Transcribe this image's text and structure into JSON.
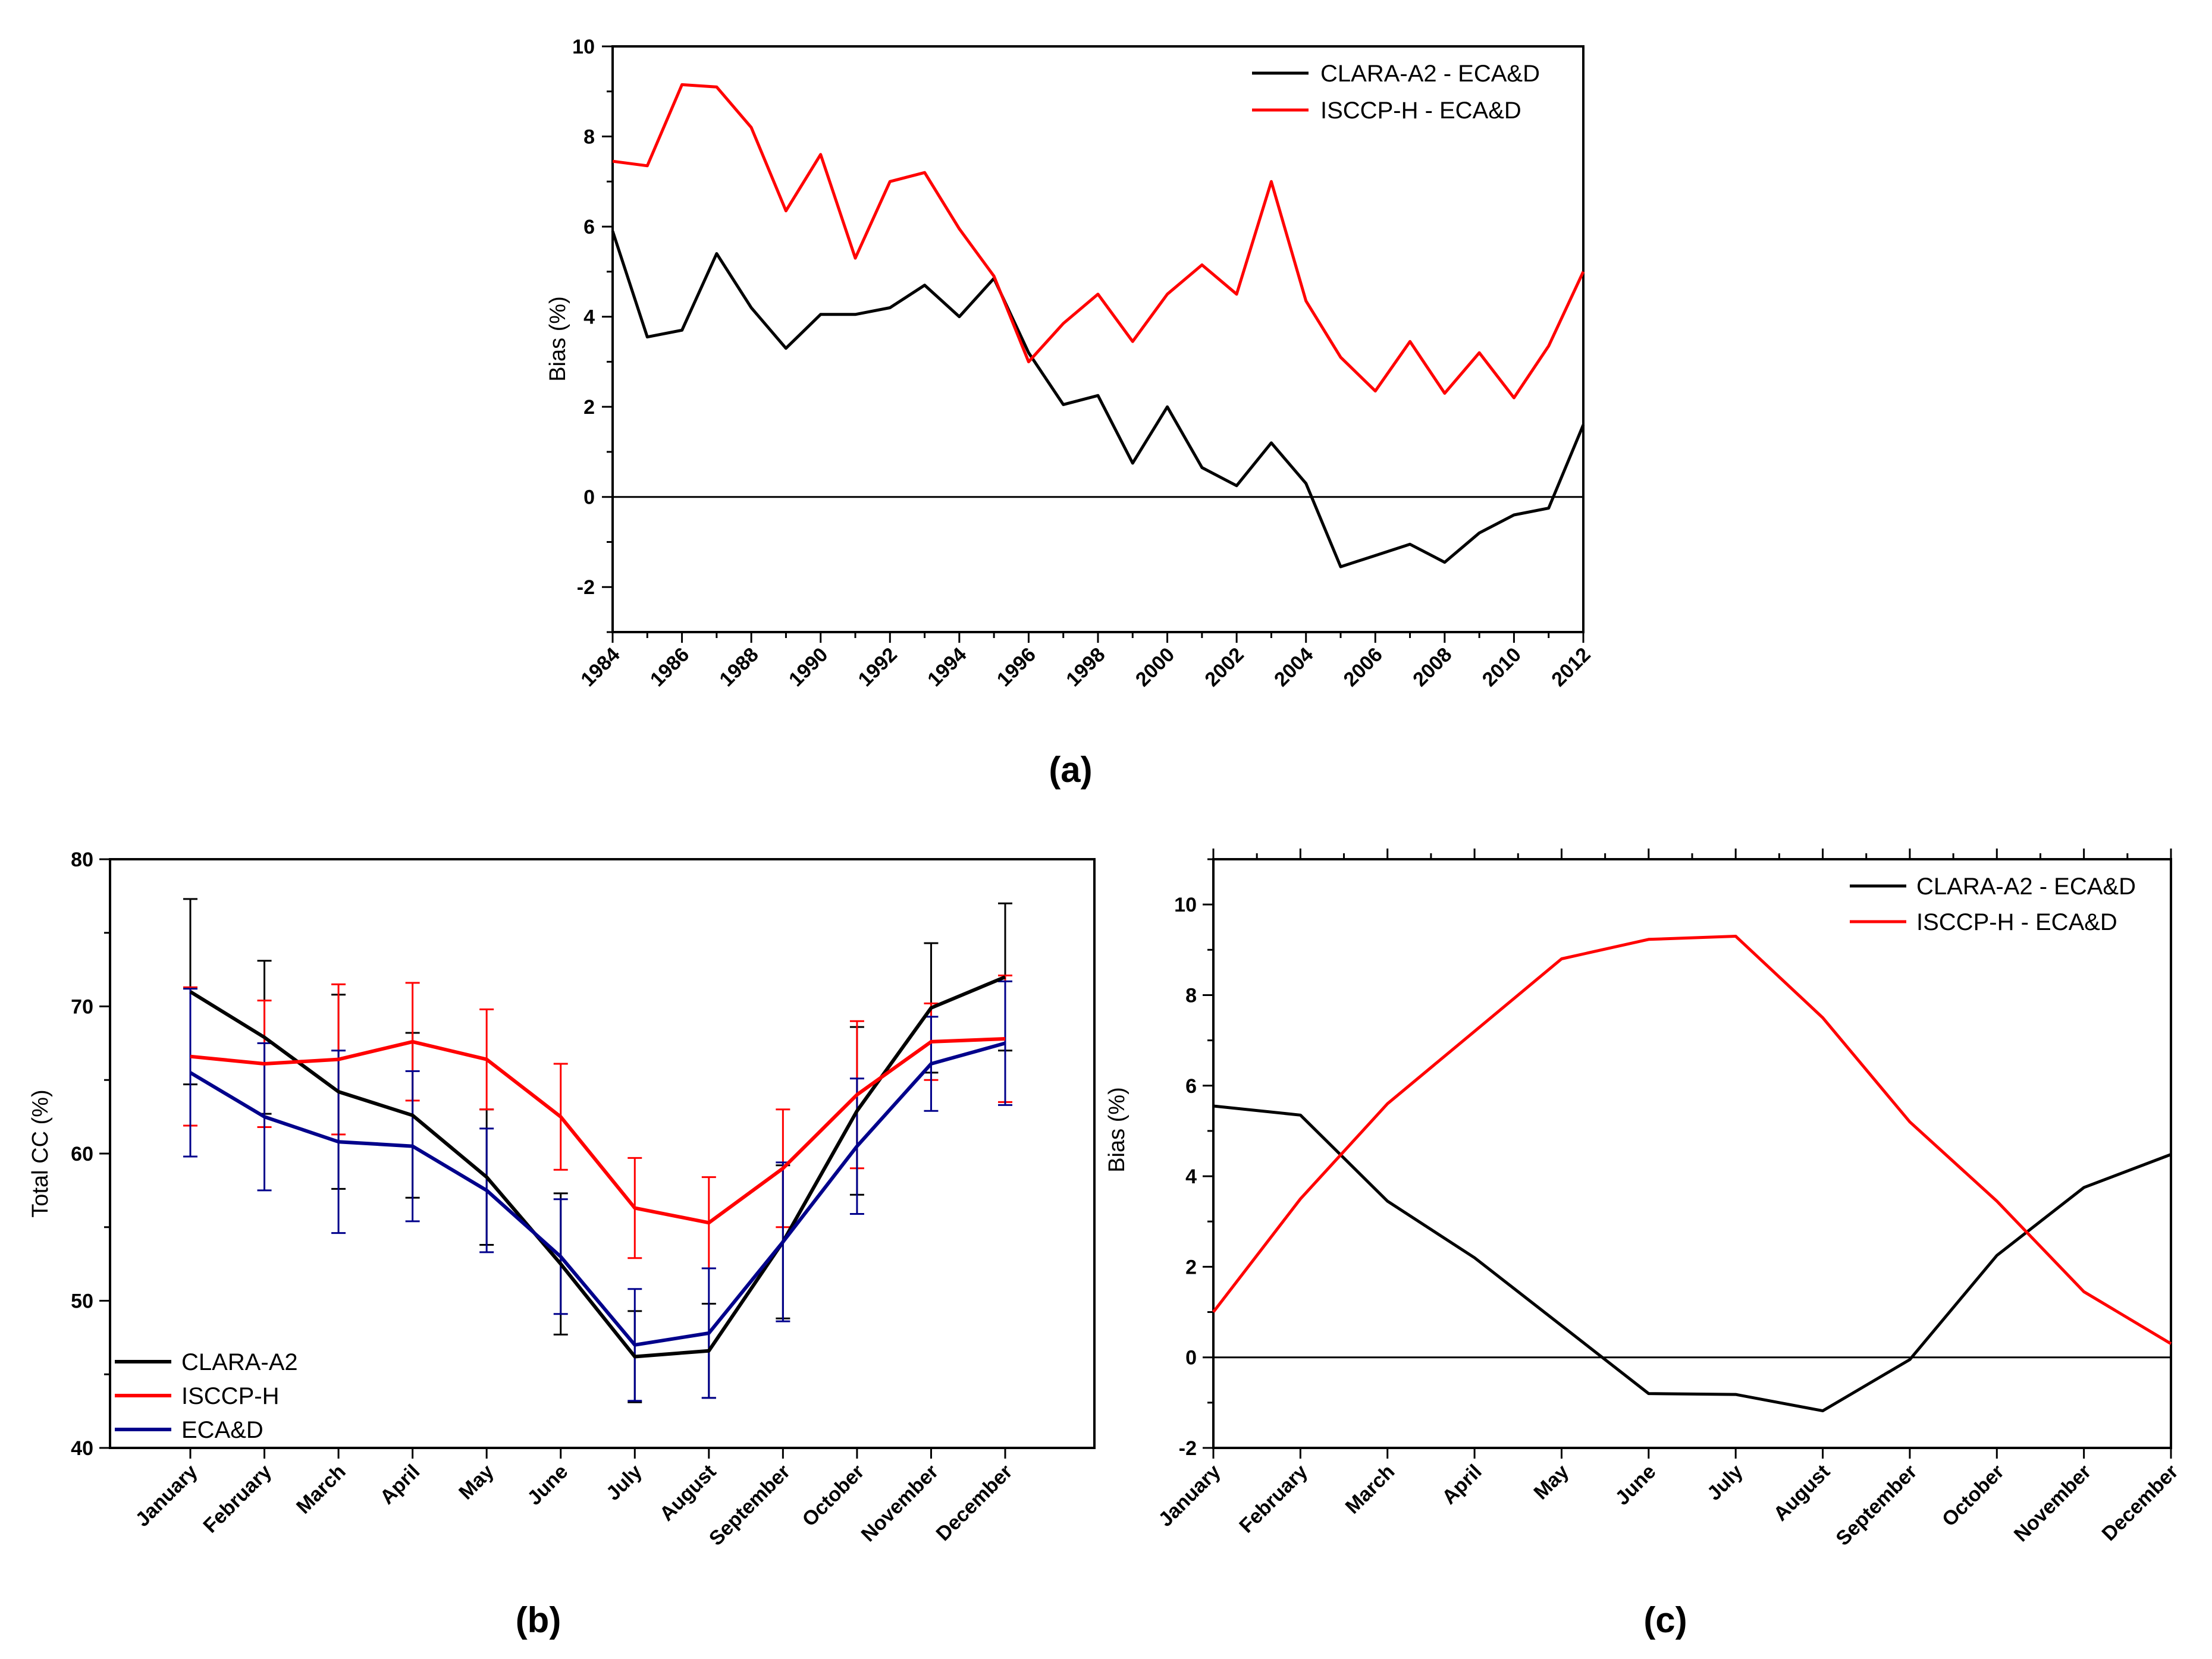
{
  "chart_data": [
    {
      "type": "line",
      "panel_label": "(a)",
      "xlabel": "",
      "ylabel": "Bias (%)",
      "xlim": [
        1984,
        2012
      ],
      "ylim": [
        -3,
        10
      ],
      "x": [
        1984,
        1985,
        1986,
        1987,
        1988,
        1989,
        1990,
        1991,
        1992,
        1993,
        1994,
        1995,
        1996,
        1997,
        1998,
        1999,
        2000,
        2001,
        2002,
        2003,
        2004,
        2005,
        2006,
        2007,
        2008,
        2009,
        2010,
        2011,
        2012
      ],
      "x_tick_labels": [
        "1984",
        "1986",
        "1988",
        "1990",
        "1992",
        "1994",
        "1996",
        "1998",
        "2000",
        "2002",
        "2004",
        "2006",
        "2008",
        "2010",
        "2012"
      ],
      "y_tick_labels": [
        "-2",
        "0",
        "2",
        "4",
        "6",
        "8",
        "10"
      ],
      "legend_position": "top-right",
      "series": [
        {
          "name": "CLARA-A2 - ECA&D",
          "color": "#000000",
          "values": [
            5.9,
            3.55,
            3.7,
            5.4,
            4.2,
            3.3,
            4.05,
            4.05,
            4.2,
            4.7,
            4.0,
            4.85,
            3.2,
            2.05,
            2.25,
            0.75,
            2.0,
            0.65,
            0.25,
            1.2,
            0.3,
            -1.55,
            -1.3,
            -1.05,
            -1.45,
            -0.8,
            -0.4,
            -0.25,
            1.6
          ]
        },
        {
          "name": "ISCCP-H - ECA&D",
          "color": "#ff0000",
          "values": [
            7.45,
            7.35,
            9.15,
            9.1,
            8.2,
            6.35,
            7.6,
            5.3,
            7.0,
            7.2,
            5.95,
            4.9,
            3.0,
            3.85,
            4.5,
            3.45,
            4.5,
            5.15,
            4.5,
            7.0,
            4.35,
            3.1,
            2.35,
            3.45,
            2.3,
            3.2,
            2.2,
            3.35,
            5.0
          ]
        }
      ]
    },
    {
      "type": "line",
      "panel_label": "(b)",
      "xlabel": "",
      "ylabel": "Total CC (%)",
      "ylim": [
        40,
        80
      ],
      "categories": [
        "January",
        "February",
        "March",
        "April",
        "May",
        "June",
        "July",
        "August",
        "September",
        "October",
        "November",
        "December"
      ],
      "y_tick_labels": [
        "40",
        "50",
        "60",
        "70",
        "80"
      ],
      "legend_position": "bottom-left",
      "series": [
        {
          "name": "CLARA-A2",
          "color": "#000000",
          "values": [
            71.0,
            67.9,
            64.2,
            62.6,
            58.4,
            52.5,
            46.2,
            46.6,
            54.0,
            62.9,
            69.9,
            72.0
          ],
          "error": [
            6.3,
            5.2,
            6.6,
            5.6,
            4.6,
            4.8,
            3.1,
            3.2,
            5.2,
            5.7,
            4.4,
            5.0
          ]
        },
        {
          "name": "ISCCP-H",
          "color": "#ff0000",
          "values": [
            66.6,
            66.1,
            66.4,
            67.6,
            66.4,
            62.5,
            56.3,
            55.3,
            59.0,
            64.0,
            67.6,
            67.8
          ],
          "error": [
            4.7,
            4.3,
            5.1,
            4.0,
            3.4,
            3.6,
            3.4,
            3.1,
            4.0,
            5.0,
            2.6,
            4.3
          ]
        },
        {
          "name": "ECA&D",
          "color": "#00008b",
          "values": [
            65.5,
            62.5,
            60.8,
            60.5,
            57.5,
            53.0,
            47.0,
            47.8,
            54.0,
            60.5,
            66.1,
            67.5
          ],
          "error": [
            5.7,
            5.0,
            6.2,
            5.1,
            4.2,
            3.9,
            3.8,
            4.4,
            5.4,
            4.6,
            3.2,
            4.2
          ]
        }
      ]
    },
    {
      "type": "line",
      "panel_label": "(c)",
      "xlabel": "",
      "ylabel": "Bias (%)",
      "ylim": [
        -2,
        11
      ],
      "categories": [
        "January",
        "February",
        "March",
        "April",
        "May",
        "June",
        "July",
        "August",
        "September",
        "October",
        "November",
        "December"
      ],
      "y_tick_labels": [
        "-2",
        "0",
        "2",
        "4",
        "6",
        "8",
        "10"
      ],
      "legend_position": "top-right",
      "series": [
        {
          "name": "CLARA-A2 - ECA&D",
          "color": "#000000",
          "values": [
            5.55,
            5.35,
            3.45,
            2.2,
            0.7,
            -0.8,
            -0.82,
            -1.18,
            -0.05,
            2.25,
            3.75,
            4.48
          ]
        },
        {
          "name": "ISCCP-H - ECA&D",
          "color": "#ff0000",
          "values": [
            1.0,
            3.5,
            5.6,
            7.2,
            8.8,
            9.23,
            9.3,
            7.5,
            5.2,
            3.45,
            1.45,
            0.3
          ]
        }
      ]
    }
  ]
}
